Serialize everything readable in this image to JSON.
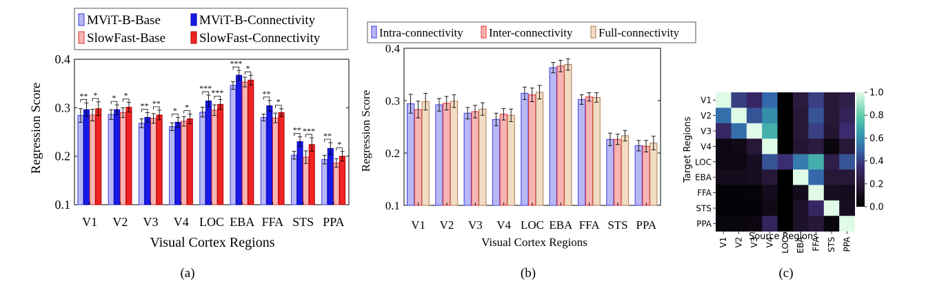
{
  "colors": {
    "mvit_base_fill": "#b8b8f4",
    "mvit_base_edge": "#3a3ae0",
    "mvit_conn_fill": "#1a1ae6",
    "mvit_conn_edge": "#0000b0",
    "sf_base_fill": "#f7b5b5",
    "sf_base_edge": "#e03030",
    "sf_conn_fill": "#ee2424",
    "sf_conn_edge": "#b00000",
    "intra_fill": "#b8b8f4",
    "intra_edge": "#3a3ae0",
    "inter_fill": "#f7b5b5",
    "inter_edge": "#e03030",
    "full_fill": "#f2dcc4",
    "full_edge": "#b07a50"
  },
  "chart_data": [
    {
      "id": "a",
      "type": "bar",
      "caption": "(a)",
      "xlabel": "Visual Cortex Regions",
      "ylabel": "Regression Score",
      "ylim": [
        0.1,
        0.4
      ],
      "yticks": [
        "0.1",
        "0.2",
        "0.3",
        "0.4"
      ],
      "categories": [
        "V1",
        "V2",
        "V3",
        "V4",
        "LOC",
        "EBA",
        "FFA",
        "STS",
        "PPA"
      ],
      "legend_position": "top",
      "series": [
        {
          "name": "MViT-B-Base",
          "values": [
            0.284,
            0.286,
            0.268,
            0.261,
            0.291,
            0.346,
            0.28,
            0.202,
            0.193
          ],
          "errors": [
            0.014,
            0.01,
            0.009,
            0.008,
            0.01,
            0.008,
            0.007,
            0.008,
            0.009
          ]
        },
        {
          "name": "MViT-B-Connectivity",
          "values": [
            0.296,
            0.296,
            0.28,
            0.27,
            0.314,
            0.367,
            0.304,
            0.23,
            0.216
          ],
          "errors": [
            0.014,
            0.01,
            0.01,
            0.01,
            0.012,
            0.01,
            0.011,
            0.01,
            0.012
          ]
        },
        {
          "name": "SlowFast-Base",
          "values": [
            0.285,
            0.29,
            0.278,
            0.272,
            0.295,
            0.353,
            0.279,
            0.198,
            0.186
          ],
          "errors": [
            0.012,
            0.01,
            0.01,
            0.01,
            0.011,
            0.01,
            0.01,
            0.013,
            0.009
          ]
        },
        {
          "name": "SlowFast-Connectivity",
          "values": [
            0.298,
            0.301,
            0.285,
            0.277,
            0.307,
            0.357,
            0.29,
            0.224,
            0.2
          ],
          "errors": [
            0.014,
            0.01,
            0.01,
            0.01,
            0.01,
            0.01,
            0.008,
            0.014,
            0.01
          ]
        }
      ],
      "significance": [
        {
          "cat": 0,
          "from": 0,
          "to": 1,
          "label": "**"
        },
        {
          "cat": 0,
          "from": 2,
          "to": 3,
          "label": "*"
        },
        {
          "cat": 1,
          "from": 0,
          "to": 1,
          "label": "*"
        },
        {
          "cat": 1,
          "from": 2,
          "to": 3,
          "label": "*"
        },
        {
          "cat": 2,
          "from": 0,
          "to": 1,
          "label": "**"
        },
        {
          "cat": 2,
          "from": 2,
          "to": 3,
          "label": "**"
        },
        {
          "cat": 3,
          "from": 0,
          "to": 1,
          "label": "*"
        },
        {
          "cat": 3,
          "from": 2,
          "to": 3,
          "label": "*"
        },
        {
          "cat": 4,
          "from": 0,
          "to": 1,
          "label": "***"
        },
        {
          "cat": 4,
          "from": 2,
          "to": 3,
          "label": "***"
        },
        {
          "cat": 5,
          "from": 0,
          "to": 1,
          "label": "***"
        },
        {
          "cat": 5,
          "from": 2,
          "to": 3,
          "label": "*"
        },
        {
          "cat": 6,
          "from": 0,
          "to": 1,
          "label": "**"
        },
        {
          "cat": 6,
          "from": 2,
          "to": 3,
          "label": "*"
        },
        {
          "cat": 7,
          "from": 0,
          "to": 1,
          "label": "**"
        },
        {
          "cat": 7,
          "from": 2,
          "to": 3,
          "label": "***"
        },
        {
          "cat": 8,
          "from": 0,
          "to": 1,
          "label": "**"
        },
        {
          "cat": 8,
          "from": 2,
          "to": 3,
          "label": "*"
        }
      ]
    },
    {
      "id": "b",
      "type": "bar",
      "caption": "(b)",
      "xlabel": "Visual Cortex Regions",
      "ylabel": "Regression Score",
      "ylim": [
        0.1,
        0.4
      ],
      "yticks": [
        "0.1",
        "0.2",
        "0.3",
        "0.4"
      ],
      "categories": [
        "V1",
        "V2",
        "V3",
        "V4",
        "LOC",
        "EBA",
        "FFA",
        "STS",
        "PPA"
      ],
      "legend_position": "top",
      "series": [
        {
          "name": "Intra-connectivity",
          "values": [
            0.294,
            0.292,
            0.276,
            0.264,
            0.314,
            0.363,
            0.302,
            0.226,
            0.214
          ],
          "errors": [
            0.018,
            0.012,
            0.011,
            0.012,
            0.012,
            0.01,
            0.009,
            0.012,
            0.01
          ]
        },
        {
          "name": "Inter-connectivity",
          "values": [
            0.283,
            0.295,
            0.279,
            0.274,
            0.311,
            0.366,
            0.307,
            0.226,
            0.213
          ],
          "errors": [
            0.016,
            0.013,
            0.012,
            0.011,
            0.013,
            0.011,
            0.008,
            0.01,
            0.011
          ]
        },
        {
          "name": "Full-connectivity",
          "values": [
            0.298,
            0.299,
            0.284,
            0.272,
            0.316,
            0.369,
            0.306,
            0.233,
            0.219
          ],
          "errors": [
            0.016,
            0.012,
            0.012,
            0.012,
            0.013,
            0.011,
            0.009,
            0.01,
            0.013
          ]
        }
      ]
    },
    {
      "id": "c",
      "type": "heatmap",
      "caption": "(c)",
      "xlabel": "Source Regions",
      "ylabel": "Target Regions",
      "rows": [
        "V1",
        "V2",
        "V3",
        "V4",
        "LOC",
        "EBA",
        "FFA",
        "STS",
        "PPA"
      ],
      "cols": [
        "V1",
        "V2",
        "V3",
        "V4",
        "LOC",
        "EBA",
        "FFA",
        "STS",
        "PPA"
      ],
      "colorbar_ticks": [
        "0.0",
        "0.2",
        "0.4",
        "0.6",
        "0.8",
        "1.0"
      ],
      "vmin": 0.0,
      "vmax": 1.0,
      "values": [
        [
          1.0,
          0.4,
          0.32,
          0.5,
          0.0,
          0.22,
          0.4,
          0.2,
          0.25
        ],
        [
          0.52,
          1.0,
          0.45,
          0.6,
          0.0,
          0.2,
          0.45,
          0.2,
          0.28
        ],
        [
          0.32,
          0.52,
          1.0,
          0.7,
          0.0,
          0.2,
          0.4,
          0.18,
          0.35
        ],
        [
          0.06,
          0.08,
          0.2,
          1.0,
          0.0,
          0.18,
          0.22,
          0.05,
          0.2
        ],
        [
          0.06,
          0.06,
          0.12,
          0.45,
          0.36,
          0.55,
          0.7,
          0.25,
          0.45
        ],
        [
          0.1,
          0.1,
          0.12,
          0.2,
          0.0,
          1.0,
          0.5,
          0.2,
          0.2
        ],
        [
          0.02,
          0.02,
          0.03,
          0.1,
          0.0,
          0.1,
          1.0,
          0.12,
          0.1
        ],
        [
          0.02,
          0.02,
          0.02,
          0.08,
          0.0,
          0.15,
          0.32,
          1.0,
          0.12
        ],
        [
          0.05,
          0.05,
          0.06,
          0.3,
          0.0,
          0.15,
          0.2,
          0.05,
          1.0
        ]
      ]
    }
  ]
}
